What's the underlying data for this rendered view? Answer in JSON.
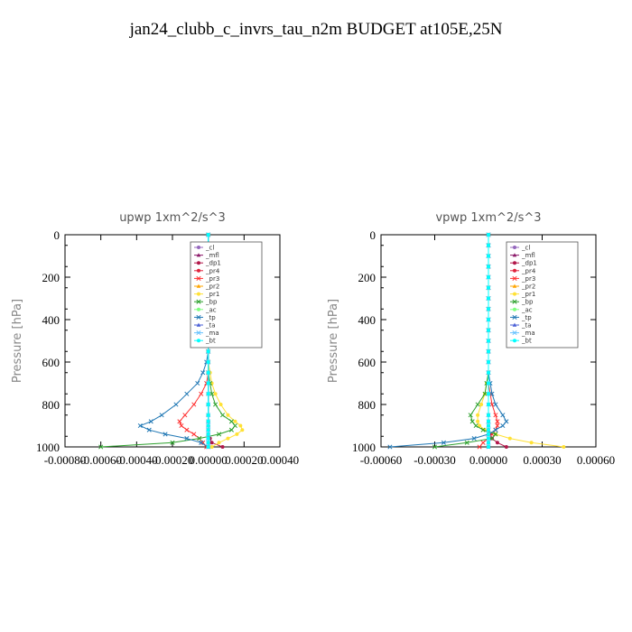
{
  "page_title": "jan24_clubb_c_invrs_tau_n2m  BUDGET at105E,25N",
  "chart_data": [
    {
      "type": "line",
      "title": "upwp   1xm^2/s^3",
      "ylabel": "Pressure [hPa]",
      "ylim": [
        0,
        1000
      ],
      "y_inverted": true,
      "xlim": [
        -0.0008,
        0.0004
      ],
      "xticks": [
        -0.0008,
        -0.0006,
        -0.0004,
        -0.0002,
        0.0,
        0.0002,
        0.0004
      ],
      "xtick_labels": [
        "-0.00080",
        "-0.00060",
        "-0.00040",
        "-0.00020",
        "0.00000",
        "0.00020",
        "0.00040"
      ],
      "yticks": [
        0,
        200,
        400,
        600,
        800,
        1000
      ],
      "legend_position": "top-right",
      "y": [
        0,
        50,
        100,
        150,
        200,
        250,
        300,
        350,
        400,
        450,
        500,
        550,
        600,
        650,
        700,
        750,
        800,
        850,
        880,
        900,
        920,
        940,
        960,
        980,
        1000
      ],
      "series": [
        {
          "name": "_cl",
          "color": "#9467bd",
          "marker": "circle",
          "values": [
            0,
            0,
            0,
            0,
            0,
            0,
            0,
            0,
            0,
            0,
            0,
            0,
            0,
            0,
            0,
            0,
            0,
            0,
            0,
            0,
            0,
            0,
            0,
            0,
            0
          ]
        },
        {
          "name": "_mfl",
          "color": "#8c1a6a",
          "marker": "triangle",
          "values": [
            0,
            0,
            0,
            0,
            0,
            0,
            0,
            0,
            0,
            0,
            0,
            0,
            0,
            0,
            0,
            0,
            0,
            0,
            0,
            0,
            0,
            0,
            0,
            0,
            0
          ]
        },
        {
          "name": "_dp1",
          "color": "#b2184a",
          "marker": "circle",
          "values": [
            0,
            0,
            0,
            0,
            0,
            0,
            0,
            0,
            0,
            0,
            0,
            0,
            0,
            0,
            0,
            0,
            0,
            0,
            0,
            0,
            0,
            0,
            1e-05,
            2e-05,
            8e-05
          ]
        },
        {
          "name": "_pr4",
          "color": "#e0223c",
          "marker": "circle",
          "values": [
            0,
            0,
            0,
            0,
            0,
            0,
            0,
            0,
            0,
            0,
            0,
            0,
            0,
            0,
            0,
            0,
            0,
            0,
            0,
            0,
            0,
            0,
            0,
            0,
            0
          ]
        },
        {
          "name": "_pr3",
          "color": "#ff3030",
          "marker": "x",
          "values": [
            0,
            0,
            0,
            0,
            0,
            0,
            0,
            0,
            0,
            0,
            0,
            0,
            0,
            0,
            -1e-05,
            -4e-05,
            -8e-05,
            -0.00013,
            -0.00016,
            -0.00015,
            -0.00012,
            -8e-05,
            -5e-05,
            -3e-05,
            -1e-05
          ]
        },
        {
          "name": "_pr2",
          "color": "#ffa500",
          "marker": "triangle",
          "values": [
            0,
            0,
            0,
            0,
            0,
            0,
            0,
            0,
            0,
            0,
            0,
            0,
            0,
            0,
            0,
            0,
            0,
            0,
            0,
            0,
            0,
            0,
            0,
            0,
            0
          ]
        },
        {
          "name": "_pr1",
          "color": "#ffe135",
          "marker": "circle",
          "values": [
            0,
            0,
            0,
            0,
            0,
            0,
            0,
            0,
            0,
            0,
            0,
            0,
            0,
            1e-05,
            2e-05,
            4e-05,
            7e-05,
            0.00011,
            0.00015,
            0.00018,
            0.00019,
            0.00016,
            0.00011,
            6e-05,
            2e-05
          ]
        },
        {
          "name": "_bp",
          "color": "#2ca02c",
          "marker": "x",
          "values": [
            0,
            0,
            0,
            0,
            0,
            0,
            0,
            0,
            0,
            0,
            0,
            0,
            0,
            0,
            1e-05,
            2e-05,
            4e-05,
            8e-05,
            0.00013,
            0.00015,
            0.00013,
            6e-05,
            -5e-05,
            -0.0002,
            -0.0006
          ]
        },
        {
          "name": "_ac",
          "color": "#7fff7f",
          "marker": "circle",
          "values": [
            0,
            0,
            0,
            0,
            0,
            0,
            0,
            0,
            0,
            0,
            0,
            0,
            0,
            0,
            0,
            0,
            0,
            0,
            0,
            0,
            0,
            0,
            0,
            0,
            0
          ]
        },
        {
          "name": "_tp",
          "color": "#1f77b4",
          "marker": "x",
          "values": [
            0,
            0,
            0,
            0,
            0,
            0,
            0,
            0,
            0,
            0,
            0,
            0,
            -1e-05,
            -3e-05,
            -6e-05,
            -0.00012,
            -0.00018,
            -0.00026,
            -0.00032,
            -0.00038,
            -0.00033,
            -0.00024,
            -0.00012,
            -4e-05,
            0
          ]
        },
        {
          "name": "_ta",
          "color": "#4a5fd6",
          "marker": "triangle",
          "values": [
            0,
            0,
            0,
            0,
            0,
            0,
            0,
            0,
            0,
            0,
            0,
            0,
            0,
            0,
            0,
            0,
            0,
            0,
            0,
            0,
            0,
            0,
            0,
            0,
            0
          ]
        },
        {
          "name": "_ma",
          "color": "#66c2ff",
          "marker": "x",
          "values": [
            0,
            0,
            0,
            0,
            0,
            0,
            0,
            0,
            0,
            0,
            0,
            0,
            0,
            0,
            0,
            0,
            0,
            0,
            0,
            0,
            0,
            0,
            0,
            0,
            0
          ]
        },
        {
          "name": "_bt",
          "color": "#00ffff",
          "marker": "circle",
          "values": [
            0,
            0,
            0,
            0,
            0,
            0,
            0,
            0,
            0,
            0,
            0,
            0,
            0,
            0,
            0,
            0,
            0,
            0,
            0,
            0,
            0,
            0,
            0,
            0,
            0
          ]
        }
      ]
    },
    {
      "type": "line",
      "title": "vpwp   1xm^2/s^3",
      "ylabel": "Pressure [hPa]",
      "ylim": [
        0,
        1000
      ],
      "y_inverted": true,
      "xlim": [
        -0.0006,
        0.0006
      ],
      "xticks": [
        -0.0006,
        -0.0003,
        0.0,
        0.0003,
        0.0006
      ],
      "xtick_labels": [
        "-0.00060",
        "-0.00030",
        "0.00000",
        "0.00030",
        "0.00060"
      ],
      "yticks": [
        0,
        200,
        400,
        600,
        800,
        1000
      ],
      "legend_position": "top-right",
      "y": [
        0,
        50,
        100,
        150,
        200,
        250,
        300,
        350,
        400,
        450,
        500,
        550,
        600,
        650,
        700,
        750,
        800,
        850,
        880,
        900,
        920,
        940,
        960,
        980,
        1000
      ],
      "series": [
        {
          "name": "_cl",
          "color": "#9467bd",
          "marker": "circle",
          "values": [
            0,
            0,
            0,
            0,
            0,
            0,
            0,
            0,
            0,
            0,
            0,
            0,
            0,
            0,
            0,
            0,
            0,
            0,
            0,
            0,
            0,
            0,
            0,
            0,
            0
          ]
        },
        {
          "name": "_mfl",
          "color": "#8c1a6a",
          "marker": "triangle",
          "values": [
            0,
            0,
            0,
            0,
            0,
            0,
            0,
            0,
            0,
            0,
            0,
            0,
            0,
            0,
            0,
            0,
            0,
            0,
            0,
            0,
            0,
            0,
            0,
            0,
            0
          ]
        },
        {
          "name": "_dp1",
          "color": "#b2184a",
          "marker": "circle",
          "values": [
            0,
            0,
            0,
            0,
            0,
            0,
            0,
            0,
            0,
            0,
            0,
            0,
            0,
            0,
            0,
            0,
            0,
            0,
            0,
            0,
            0,
            1e-05,
            2e-05,
            5e-05,
            0.0001
          ]
        },
        {
          "name": "_pr4",
          "color": "#e0223c",
          "marker": "circle",
          "values": [
            0,
            0,
            0,
            0,
            0,
            0,
            0,
            0,
            0,
            0,
            0,
            0,
            0,
            0,
            0,
            0,
            0,
            0,
            0,
            0,
            0,
            0,
            0,
            0,
            0
          ]
        },
        {
          "name": "_pr3",
          "color": "#ff3030",
          "marker": "x",
          "values": [
            0,
            0,
            0,
            0,
            0,
            0,
            0,
            0,
            0,
            0,
            0,
            0,
            0,
            0,
            0,
            1e-05,
            2e-05,
            4e-05,
            5e-05,
            5e-05,
            4e-05,
            2e-05,
            0,
            -3e-05,
            -5e-05
          ]
        },
        {
          "name": "_pr2",
          "color": "#ffa500",
          "marker": "triangle",
          "values": [
            0,
            0,
            0,
            0,
            0,
            0,
            0,
            0,
            0,
            0,
            0,
            0,
            0,
            0,
            0,
            0,
            0,
            0,
            0,
            0,
            0,
            0,
            0,
            0,
            0
          ]
        },
        {
          "name": "_pr1",
          "color": "#ffe135",
          "marker": "circle",
          "values": [
            0,
            0,
            0,
            0,
            0,
            0,
            0,
            0,
            0,
            0,
            0,
            0,
            0,
            0,
            -1e-05,
            -2e-05,
            -4e-05,
            -6e-05,
            -6e-05,
            -5e-05,
            -2e-05,
            4e-05,
            0.00012,
            0.00024,
            0.00042
          ]
        },
        {
          "name": "_bp",
          "color": "#2ca02c",
          "marker": "x",
          "values": [
            0,
            0,
            0,
            0,
            0,
            0,
            0,
            0,
            0,
            0,
            0,
            0,
            0,
            0,
            -1e-05,
            -2e-05,
            -6e-05,
            -0.0001,
            -9e-05,
            -7e-05,
            -3e-05,
            4e-05,
            2e-05,
            -0.00012,
            -0.0003
          ]
        },
        {
          "name": "_ac",
          "color": "#7fff7f",
          "marker": "circle",
          "values": [
            0,
            0,
            0,
            0,
            0,
            0,
            0,
            0,
            0,
            0,
            0,
            0,
            0,
            0,
            0,
            0,
            0,
            0,
            0,
            0,
            0,
            0,
            0,
            0,
            0
          ]
        },
        {
          "name": "_tp",
          "color": "#1f77b4",
          "marker": "x",
          "values": [
            0,
            0,
            0,
            0,
            0,
            0,
            0,
            0,
            0,
            0,
            0,
            0,
            0,
            0,
            1e-05,
            2e-05,
            4e-05,
            8e-05,
            0.0001,
            8e-05,
            4e-05,
            0,
            -8e-05,
            -0.00025,
            -0.00055
          ]
        },
        {
          "name": "_ta",
          "color": "#4a5fd6",
          "marker": "triangle",
          "values": [
            0,
            0,
            0,
            0,
            0,
            0,
            0,
            0,
            0,
            0,
            0,
            0,
            0,
            0,
            0,
            0,
            0,
            0,
            0,
            0,
            0,
            0,
            0,
            0,
            0
          ]
        },
        {
          "name": "_ma",
          "color": "#66c2ff",
          "marker": "x",
          "values": [
            0,
            0,
            0,
            0,
            0,
            0,
            0,
            0,
            0,
            0,
            0,
            0,
            0,
            0,
            0,
            0,
            0,
            0,
            0,
            0,
            0,
            0,
            0,
            0,
            0
          ]
        },
        {
          "name": "_bt",
          "color": "#00ffff",
          "marker": "circle",
          "values": [
            0,
            0,
            0,
            0,
            0,
            0,
            0,
            0,
            0,
            0,
            0,
            0,
            0,
            0,
            0,
            0,
            0,
            0,
            0,
            0,
            0,
            0,
            0,
            0,
            0
          ]
        }
      ]
    }
  ]
}
